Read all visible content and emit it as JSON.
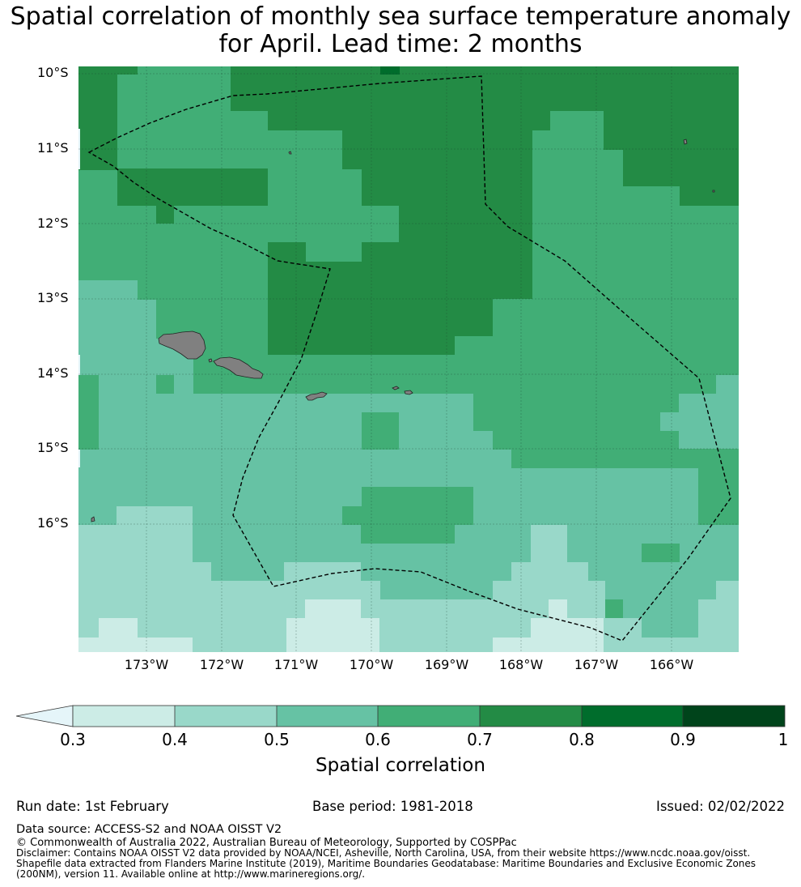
{
  "title_line1": "Spatial correlation of monthly sea surface temperature anomaly",
  "title_line2": "for April. Lead time: 2 months",
  "latitude_ticks": [
    "10°S",
    "11°S",
    "12°S",
    "13°S",
    "14°S",
    "15°S",
    "16°S"
  ],
  "longitude_ticks": [
    "173°W",
    "172°W",
    "171°W",
    "170°W",
    "169°W",
    "168°W",
    "167°W",
    "166°W"
  ],
  "colorbar": {
    "label": "Spatial correlation",
    "ticks": [
      "0.3",
      "0.4",
      "0.5",
      "0.6",
      "0.7",
      "0.8",
      "0.9",
      "1"
    ],
    "colors": [
      "#ccece6",
      "#99d8c9",
      "#66c2a4",
      "#41ae76",
      "#238b45",
      "#006d2c",
      "#00441b"
    ],
    "extend": "min",
    "extend_color": "#e5f5f9"
  },
  "colors": {
    "land": "#808080",
    "eez_boundary": "#000000"
  },
  "footer": {
    "run_date": "Run date: 1st February",
    "base_period": "Base period: 1981-2018",
    "issued": "Issued: 02/02/2022",
    "data_source": "Data source: ACCESS-S2 and NOAA OISST V2",
    "copyright": "© Commonwealth of Australia 2022, Australian Bureau of Meteorology, Supported by COSPPac",
    "disclaimer": "Disclaimer: Contains NOAA OISST V2 data provided by NOAA/NCEI, Asheville, North Carolina, USA, from their website https://www.ncdc.noaa.gov/oisst. Shapefile data extracted from Flanders Marine Institute (2019), Maritime Boundaries Geodatabase: Maritime Boundaries and Exclusive Economic Zones (200NM), version 11. Available online at http://www.marineregions.org/."
  }
}
